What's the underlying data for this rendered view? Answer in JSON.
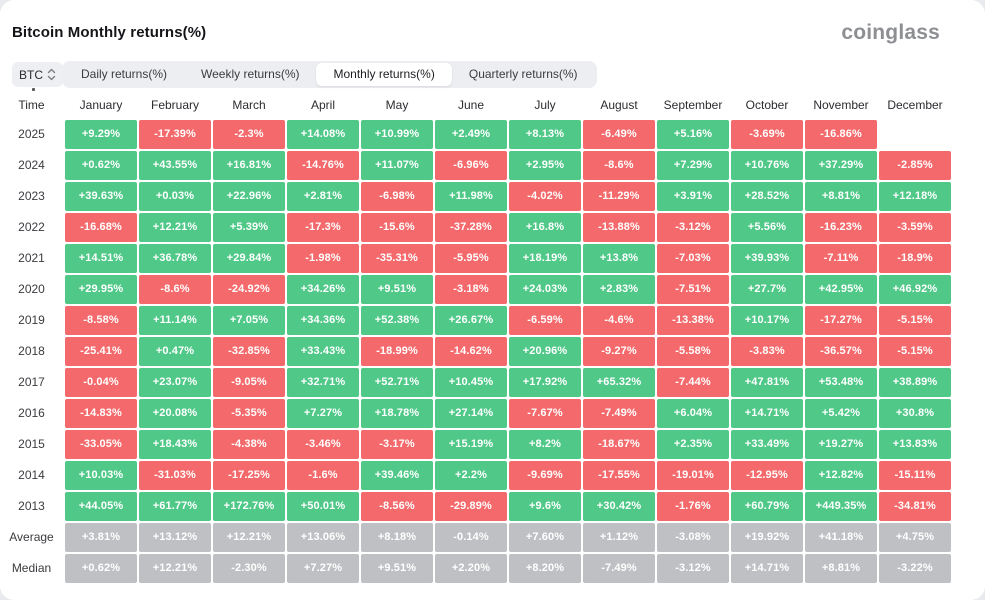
{
  "header": {
    "title": "Bitcoin Monthly returns(%)",
    "logo": "coinglass"
  },
  "controls": {
    "coin_selector": {
      "value": "BTC",
      "icon": "sort-updown-icon"
    },
    "tabs": [
      {
        "label": "Daily returns(%)",
        "active": false
      },
      {
        "label": "Weekly returns(%)",
        "active": false
      },
      {
        "label": "Monthly returns(%)",
        "active": true
      },
      {
        "label": "Quarterly returns(%)",
        "active": false
      }
    ]
  },
  "colors": {
    "positive": "#4fc888",
    "negative": "#f4696b",
    "neutral": "#bfc0c3"
  },
  "table": {
    "time_header": "Time",
    "months": [
      "January",
      "February",
      "March",
      "April",
      "May",
      "June",
      "July",
      "August",
      "September",
      "October",
      "November",
      "December"
    ],
    "rows": [
      {
        "label": "2025",
        "neutral": false,
        "values": [
          "+9.29%",
          "-17.39%",
          "-2.3%",
          "+14.08%",
          "+10.99%",
          "+2.49%",
          "+8.13%",
          "-6.49%",
          "+5.16%",
          "-3.69%",
          "-16.86%",
          ""
        ]
      },
      {
        "label": "2024",
        "neutral": false,
        "values": [
          "+0.62%",
          "+43.55%",
          "+16.81%",
          "-14.76%",
          "+11.07%",
          "-6.96%",
          "+2.95%",
          "-8.6%",
          "+7.29%",
          "+10.76%",
          "+37.29%",
          "-2.85%"
        ]
      },
      {
        "label": "2023",
        "neutral": false,
        "values": [
          "+39.63%",
          "+0.03%",
          "+22.96%",
          "+2.81%",
          "-6.98%",
          "+11.98%",
          "-4.02%",
          "-11.29%",
          "+3.91%",
          "+28.52%",
          "+8.81%",
          "+12.18%"
        ]
      },
      {
        "label": "2022",
        "neutral": false,
        "values": [
          "-16.68%",
          "+12.21%",
          "+5.39%",
          "-17.3%",
          "-15.6%",
          "-37.28%",
          "+16.8%",
          "-13.88%",
          "-3.12%",
          "+5.56%",
          "-16.23%",
          "-3.59%"
        ]
      },
      {
        "label": "2021",
        "neutral": false,
        "values": [
          "+14.51%",
          "+36.78%",
          "+29.84%",
          "-1.98%",
          "-35.31%",
          "-5.95%",
          "+18.19%",
          "+13.8%",
          "-7.03%",
          "+39.93%",
          "-7.11%",
          "-18.9%"
        ]
      },
      {
        "label": "2020",
        "neutral": false,
        "values": [
          "+29.95%",
          "-8.6%",
          "-24.92%",
          "+34.26%",
          "+9.51%",
          "-3.18%",
          "+24.03%",
          "+2.83%",
          "-7.51%",
          "+27.7%",
          "+42.95%",
          "+46.92%"
        ]
      },
      {
        "label": "2019",
        "neutral": false,
        "values": [
          "-8.58%",
          "+11.14%",
          "+7.05%",
          "+34.36%",
          "+52.38%",
          "+26.67%",
          "-6.59%",
          "-4.6%",
          "-13.38%",
          "+10.17%",
          "-17.27%",
          "-5.15%"
        ]
      },
      {
        "label": "2018",
        "neutral": false,
        "values": [
          "-25.41%",
          "+0.47%",
          "-32.85%",
          "+33.43%",
          "-18.99%",
          "-14.62%",
          "+20.96%",
          "-9.27%",
          "-5.58%",
          "-3.83%",
          "-36.57%",
          "-5.15%"
        ]
      },
      {
        "label": "2017",
        "neutral": false,
        "values": [
          "-0.04%",
          "+23.07%",
          "-9.05%",
          "+32.71%",
          "+52.71%",
          "+10.45%",
          "+17.92%",
          "+65.32%",
          "-7.44%",
          "+47.81%",
          "+53.48%",
          "+38.89%"
        ]
      },
      {
        "label": "2016",
        "neutral": false,
        "values": [
          "-14.83%",
          "+20.08%",
          "-5.35%",
          "+7.27%",
          "+18.78%",
          "+27.14%",
          "-7.67%",
          "-7.49%",
          "+6.04%",
          "+14.71%",
          "+5.42%",
          "+30.8%"
        ]
      },
      {
        "label": "2015",
        "neutral": false,
        "values": [
          "-33.05%",
          "+18.43%",
          "-4.38%",
          "-3.46%",
          "-3.17%",
          "+15.19%",
          "+8.2%",
          "-18.67%",
          "+2.35%",
          "+33.49%",
          "+19.27%",
          "+13.83%"
        ]
      },
      {
        "label": "2014",
        "neutral": false,
        "values": [
          "+10.03%",
          "-31.03%",
          "-17.25%",
          "-1.6%",
          "+39.46%",
          "+2.2%",
          "-9.69%",
          "-17.55%",
          "-19.01%",
          "-12.95%",
          "+12.82%",
          "-15.11%"
        ]
      },
      {
        "label": "2013",
        "neutral": false,
        "values": [
          "+44.05%",
          "+61.77%",
          "+172.76%",
          "+50.01%",
          "-8.56%",
          "-29.89%",
          "+9.6%",
          "+30.42%",
          "-1.76%",
          "+60.79%",
          "+449.35%",
          "-34.81%"
        ]
      },
      {
        "label": "Average",
        "neutral": true,
        "values": [
          "+3.81%",
          "+13.12%",
          "+12.21%",
          "+13.06%",
          "+8.18%",
          "-0.14%",
          "+7.60%",
          "+1.12%",
          "-3.08%",
          "+19.92%",
          "+41.18%",
          "+4.75%"
        ]
      },
      {
        "label": "Median",
        "neutral": true,
        "values": [
          "+0.62%",
          "+12.21%",
          "-2.30%",
          "+7.27%",
          "+9.51%",
          "+2.20%",
          "+8.20%",
          "-7.49%",
          "-3.12%",
          "+14.71%",
          "+8.81%",
          "-3.22%"
        ]
      }
    ]
  }
}
